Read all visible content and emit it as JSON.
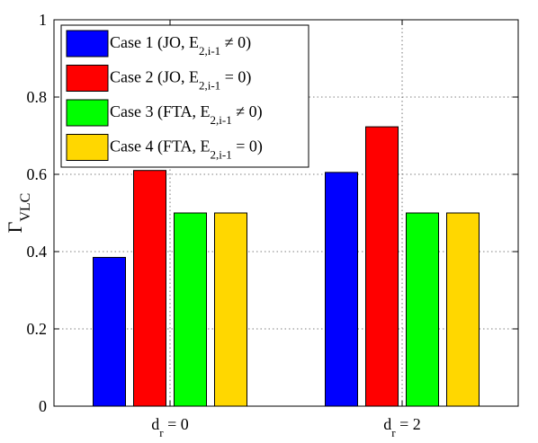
{
  "chart_data": {
    "type": "bar",
    "categories": [
      "d_r = 0",
      "d_r = 2"
    ],
    "category_labels": [
      {
        "main": "d",
        "sub": "r",
        "rest": " = 0"
      },
      {
        "main": "d",
        "sub": "r",
        "rest": " = 2"
      }
    ],
    "ylabel": {
      "main": "Γ",
      "sub": "VLC"
    },
    "ylim": [
      0,
      1
    ],
    "yticks": [
      "0",
      "0.2",
      "0.4",
      "0.6",
      "0.8",
      "1"
    ],
    "grid": true,
    "legend_position": "top-left",
    "series": [
      {
        "name": "Case 1 (JO, E2,i-1 ≠ 0)",
        "legend": {
          "pre": "Case 1 (JO, E",
          "sub": "2,i-1",
          "post": " ≠ 0)"
        },
        "color": "#0000ff",
        "values": [
          0.385,
          0.605
        ]
      },
      {
        "name": "Case 2 (JO, E2,i-1 = 0)",
        "legend": {
          "pre": "Case 2 (JO, E",
          "sub": "2,i-1",
          "post": " = 0)"
        },
        "color": "#ff0000",
        "values": [
          0.61,
          0.723
        ]
      },
      {
        "name": "Case 3 (FTA, E2,i-1 ≠ 0)",
        "legend": {
          "pre": "Case 3 (FTA, E",
          "sub": "2,i-1",
          "post": " ≠ 0)"
        },
        "color": "#00ff00",
        "values": [
          0.5,
          0.5
        ]
      },
      {
        "name": "Case 4 (FTA, E2,i-1 = 0)",
        "legend": {
          "pre": "Case 4 (FTA, E",
          "sub": "2,i-1",
          "post": " = 0)"
        },
        "color": "#ffd700",
        "values": [
          0.5,
          0.5
        ]
      }
    ]
  }
}
